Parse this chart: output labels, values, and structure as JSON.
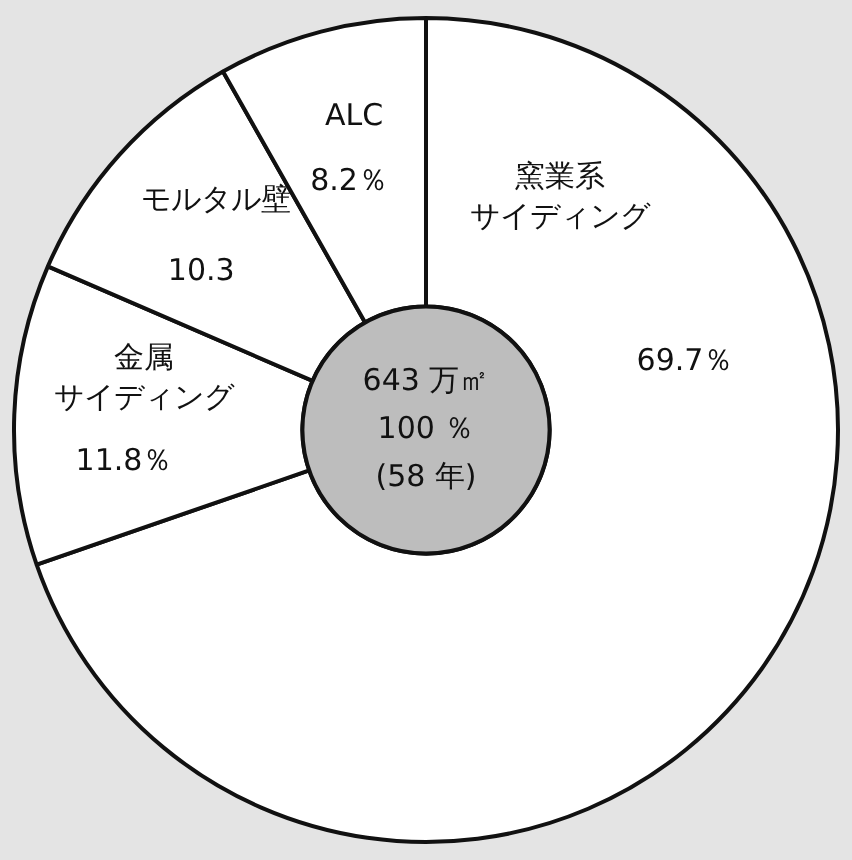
{
  "chart_data": {
    "type": "donut",
    "categories": [
      "窯業系サイディング",
      "金属サイディング",
      "モルタル壁",
      "ALC"
    ],
    "values": [
      69.7,
      11.8,
      10.3,
      8.2
    ],
    "value_labels": [
      "69.7％",
      "11.8％",
      "10.3",
      "8.2％"
    ],
    "colors": [
      "#ffffff",
      "#ffffff",
      "#ffffff",
      "#ffffff"
    ],
    "annotations": [
      "643 万㎡",
      "100 ％",
      "(58 年)"
    ],
    "legend": false
  }
}
